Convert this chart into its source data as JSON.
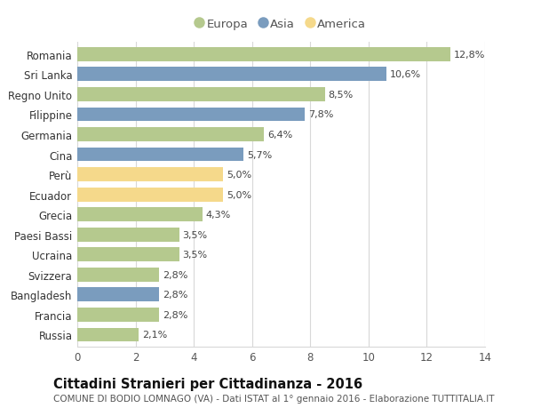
{
  "countries": [
    "Romania",
    "Sri Lanka",
    "Regno Unito",
    "Filippine",
    "Germania",
    "Cina",
    "Perù",
    "Ecuador",
    "Grecia",
    "Paesi Bassi",
    "Ucraina",
    "Svizzera",
    "Bangladesh",
    "Francia",
    "Russia"
  ],
  "values": [
    12.8,
    10.6,
    8.5,
    7.8,
    6.4,
    5.7,
    5.0,
    5.0,
    4.3,
    3.5,
    3.5,
    2.8,
    2.8,
    2.8,
    2.1
  ],
  "continents": [
    "Europa",
    "Asia",
    "Europa",
    "Asia",
    "Europa",
    "Asia",
    "America",
    "America",
    "Europa",
    "Europa",
    "Europa",
    "Europa",
    "Asia",
    "Europa",
    "Europa"
  ],
  "colors": {
    "Europa": "#b5c98e",
    "Asia": "#7a9cbe",
    "America": "#f5d98b"
  },
  "title": "Cittadini Stranieri per Cittadinanza - 2016",
  "subtitle": "COMUNE DI BODIO LOMNAGO (VA) - Dati ISTAT al 1° gennaio 2016 - Elaborazione TUTTITALIA.IT",
  "xlim": [
    0,
    14
  ],
  "xticks": [
    0,
    2,
    4,
    6,
    8,
    10,
    12,
    14
  ],
  "background_color": "#ffffff",
  "bar_height": 0.7,
  "grid_color": "#d8d8d8",
  "label_fontsize": 8.5,
  "title_fontsize": 10.5,
  "subtitle_fontsize": 7.5,
  "tick_fontsize": 8.5,
  "value_fontsize": 8.0,
  "legend_order": [
    "Europa",
    "Asia",
    "America"
  ]
}
